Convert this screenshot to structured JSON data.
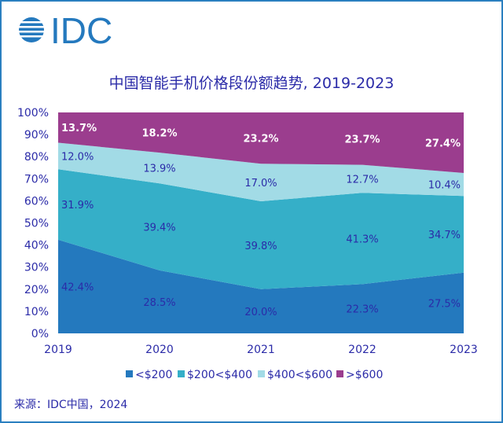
{
  "logo_text": "IDC",
  "source": "来源：IDC中国，2024",
  "chart_data": {
    "type": "area",
    "stacked": true,
    "title": "中国智能手机价格段份额趋势, 2019-2023",
    "categories": [
      "2019",
      "2020",
      "2021",
      "2022",
      "2023"
    ],
    "yticks": [
      "0%",
      "10%",
      "20%",
      "30%",
      "40%",
      "50%",
      "60%",
      "70%",
      "80%",
      "90%",
      "100%"
    ],
    "ylim": [
      0,
      100
    ],
    "legend_position": "bottom",
    "grid": false,
    "series": [
      {
        "name": "<$200",
        "color": "#2479be",
        "values": [
          42.4,
          28.5,
          20.0,
          22.3,
          27.5
        ],
        "labels": [
          "42.4%",
          "28.5%",
          "20.0%",
          "22.3%",
          "27.5%"
        ]
      },
      {
        "name": "$200<$400",
        "color": "#35afc8",
        "values": [
          31.9,
          39.4,
          39.8,
          41.3,
          34.7
        ],
        "labels": [
          "31.9%",
          "39.4%",
          "39.8%",
          "41.3%",
          "34.7%"
        ]
      },
      {
        "name": "$400<$600",
        "color": "#a2dbe6",
        "values": [
          12.0,
          13.9,
          17.0,
          12.7,
          10.4
        ],
        "labels": [
          "12.0%",
          "13.9%",
          "17.0%",
          "12.7%",
          "10.4%"
        ]
      },
      {
        "name": ">$600",
        "color": "#9b3d8e",
        "values": [
          13.7,
          18.2,
          23.2,
          23.7,
          27.4
        ],
        "labels": [
          "13.7%",
          "18.2%",
          "23.2%",
          "23.7%",
          "27.4%"
        ]
      }
    ]
  }
}
